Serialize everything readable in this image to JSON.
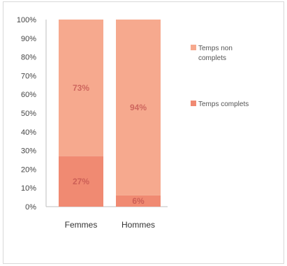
{
  "chart_data": {
    "type": "bar",
    "stacked": true,
    "percent": true,
    "categories": [
      "Femmes",
      "Hommes"
    ],
    "series": [
      {
        "name": "Temps complets",
        "values": [
          27,
          6
        ],
        "labels": [
          "27%",
          "6%"
        ],
        "color": "#f08a72"
      },
      {
        "name": "Temps non complets",
        "values": [
          73,
          94
        ],
        "labels": [
          "73%",
          "94%"
        ],
        "color": "#f6a98e"
      }
    ],
    "y_ticks": [
      "0%",
      "10%",
      "20%",
      "30%",
      "40%",
      "50%",
      "60%",
      "70%",
      "80%",
      "90%",
      "100%"
    ],
    "ylim": [
      0,
      100
    ],
    "grid": false,
    "legend_position": "right",
    "legend": [
      {
        "label": "Temps non complets",
        "color": "#f6a98e"
      },
      {
        "label": "Temps complets",
        "color": "#f08a72"
      }
    ]
  }
}
